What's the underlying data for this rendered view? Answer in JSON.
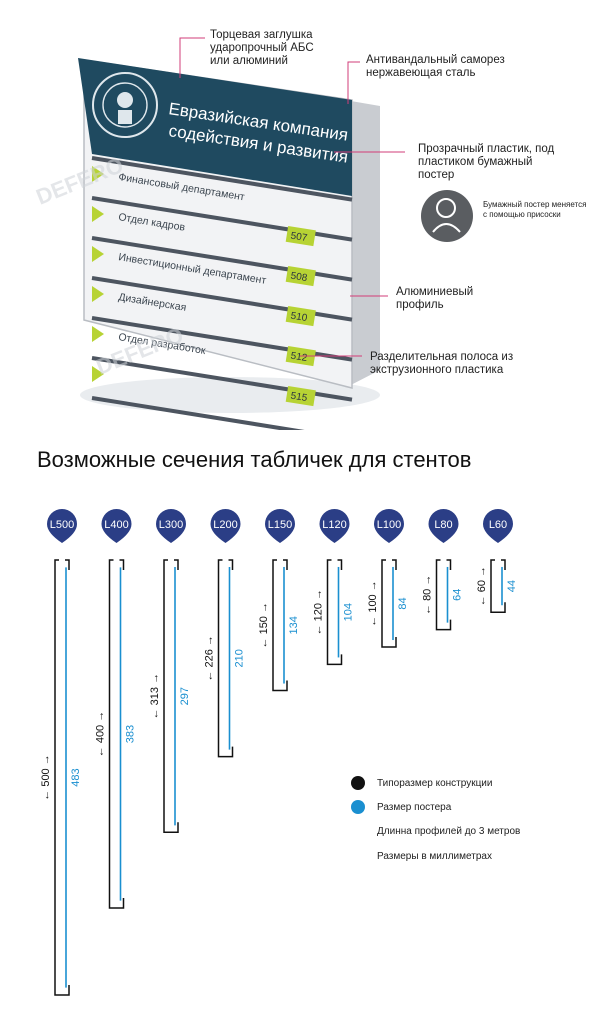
{
  "callouts": {
    "end_cap": "Торцевая заглушка ударопрочный АБС или алюминий",
    "screw": "Антивандальный саморез нержавеющая сталь",
    "plastic": "Прозрачный пластик, под пластиком бумажный постер",
    "poster_note": "Бумажный постер меняется с помощью присоски",
    "profile": "Алюминиевый профиль",
    "strip": "Разделительная полоса из экструзионного пластика"
  },
  "sign": {
    "title_line1": "Евразийская компания",
    "title_line2": "содействия  и развития",
    "rows": [
      {
        "label": "Финансовый департамент",
        "number": ""
      },
      {
        "label": "Отдел кадров",
        "number": "507"
      },
      {
        "label": "Инвестиционный департамент",
        "number": "508"
      },
      {
        "label": "Дизайнерская",
        "number": "510"
      },
      {
        "label": "Отдел разработок",
        "number": "512"
      },
      {
        "label": "",
        "number": "515"
      }
    ],
    "watermark": "DEFERO"
  },
  "section_title": "Возможные сечения табличек для стентов",
  "profiles": [
    {
      "tag": "L500",
      "construction": 500,
      "poster": 483
    },
    {
      "tag": "L400",
      "construction": 400,
      "poster": 383
    },
    {
      "tag": "L300",
      "construction": 313,
      "poster": 297
    },
    {
      "tag": "L200",
      "construction": 226,
      "poster": 210
    },
    {
      "tag": "L150",
      "construction": 150,
      "poster": 134
    },
    {
      "tag": "L120",
      "construction": 120,
      "poster": 104
    },
    {
      "tag": "L100",
      "construction": 100,
      "poster": 84
    },
    {
      "tag": "L80",
      "construction": 80,
      "poster": 64
    },
    {
      "tag": "L60",
      "construction": 60,
      "poster": 44
    }
  ],
  "legend": {
    "construction_label": "Типоразмер конструкции",
    "poster_label": "Размер постера",
    "length_note": "Длинна профилей до 3 метров",
    "units_note": "Размеры в миллиметрах"
  },
  "colors": {
    "navy": "#2b3e86",
    "sign_teal": "#1f4a60",
    "accent_green": "#b7d334",
    "poster_blue": "#1a8fd0",
    "callout_pink": "#d23c78",
    "black": "#111111"
  }
}
